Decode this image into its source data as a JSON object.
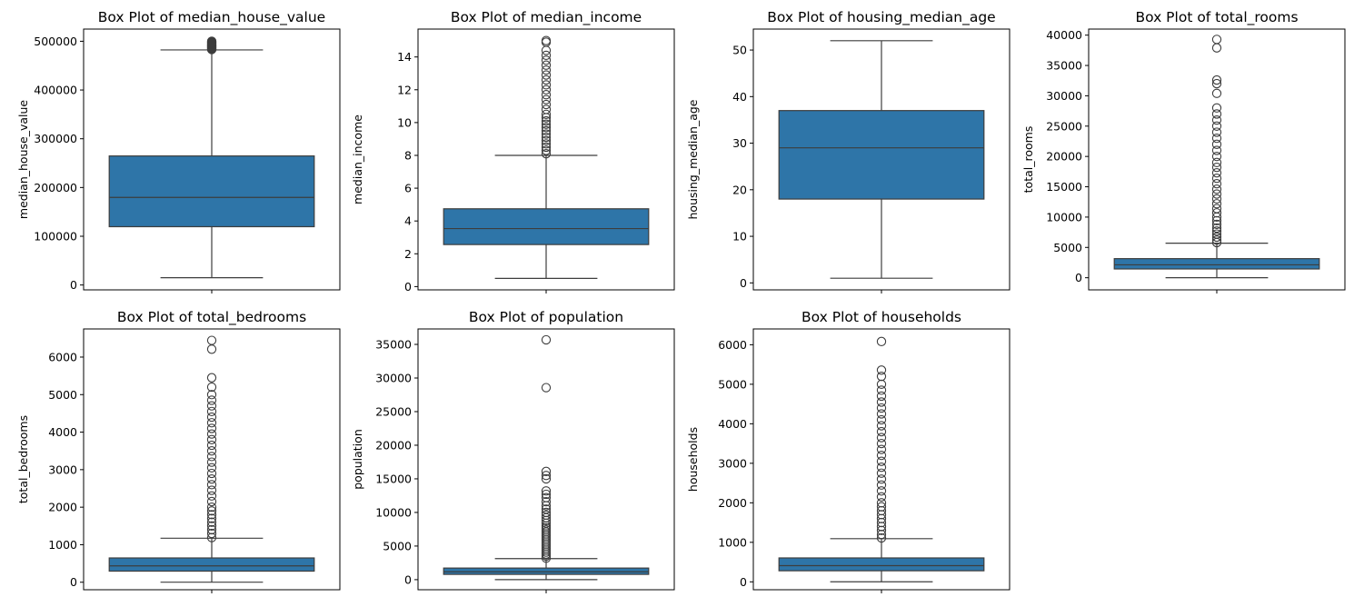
{
  "figure": {
    "background": "#ffffff"
  },
  "style": {
    "box_fill": "#2e75a8",
    "line_color": "#3d3d3d",
    "flier_edge": "#3d3d3d",
    "flier_fill": "none"
  },
  "chart_data": [
    {
      "type": "box",
      "title": "Box Plot of median_house_value",
      "ylabel": "median_house_value",
      "ylim": [
        -10000,
        525000
      ],
      "yticks": [
        0,
        100000,
        200000,
        300000,
        400000,
        500000
      ],
      "yticklabels": [
        "0",
        "100000",
        "200000",
        "300000",
        "400000",
        "500000"
      ],
      "whisker_low": 14999,
      "q1": 119600,
      "median": 179700,
      "q3": 264700,
      "whisker_high": 482200,
      "outliers": [
        483000,
        484000,
        485000,
        486000,
        487000,
        488000,
        489000,
        490000,
        491000,
        492000,
        493000,
        494000,
        495000,
        496000,
        497000,
        498000,
        499000,
        500001
      ]
    },
    {
      "type": "box",
      "title": "Box Plot of median_income",
      "ylabel": "median_income",
      "ylim": [
        -0.2,
        15.7
      ],
      "yticks": [
        0,
        2,
        4,
        6,
        8,
        10,
        12,
        14
      ],
      "yticklabels": [
        "0",
        "2",
        "4",
        "6",
        "8",
        "10",
        "12",
        "14"
      ],
      "whisker_low": 0.4999,
      "q1": 2.5634,
      "median": 3.5348,
      "q3": 4.7432,
      "whisker_high": 8.0,
      "outliers": [
        8.1,
        8.3,
        8.5,
        8.7,
        8.9,
        9.1,
        9.3,
        9.5,
        9.7,
        9.9,
        10.1,
        10.3,
        10.5,
        10.8,
        11.1,
        11.4,
        11.7,
        12.0,
        12.3,
        12.6,
        12.9,
        13.2,
        13.5,
        13.8,
        14.1,
        14.4,
        14.9,
        15.0
      ]
    },
    {
      "type": "box",
      "title": "Box Plot of housing_median_age",
      "ylabel": "housing_median_age",
      "ylim": [
        -1.5,
        54.5
      ],
      "yticks": [
        0,
        10,
        20,
        30,
        40,
        50
      ],
      "yticklabels": [
        "0",
        "10",
        "20",
        "30",
        "40",
        "50"
      ],
      "whisker_low": 1,
      "q1": 18,
      "median": 29,
      "q3": 37,
      "whisker_high": 52,
      "outliers": []
    },
    {
      "type": "box",
      "title": "Box Plot of total_rooms",
      "ylabel": "total_rooms",
      "ylim": [
        -2000,
        41000
      ],
      "yticks": [
        0,
        5000,
        10000,
        15000,
        20000,
        25000,
        30000,
        35000,
        40000
      ],
      "yticklabels": [
        "0",
        "5000",
        "10000",
        "15000",
        "20000",
        "25000",
        "30000",
        "35000",
        "40000"
      ],
      "whisker_low": 2,
      "q1": 1447,
      "median": 2127,
      "q3": 3148,
      "whisker_high": 5698,
      "outliers": [
        5800,
        6200,
        6700,
        7200,
        7700,
        8200,
        8800,
        9400,
        10000,
        10700,
        11400,
        12200,
        13000,
        13800,
        14600,
        15500,
        16400,
        17300,
        18200,
        19000,
        20000,
        21000,
        22000,
        23000,
        24000,
        25000,
        26000,
        27000,
        28000,
        30400,
        32000,
        32600,
        37900,
        39300
      ]
    },
    {
      "type": "box",
      "title": "Box Plot of total_bedrooms",
      "ylabel": "total_bedrooms",
      "ylim": [
        -200,
        6750
      ],
      "yticks": [
        0,
        1000,
        2000,
        3000,
        4000,
        5000,
        6000
      ],
      "yticklabels": [
        "0",
        "1000",
        "2000",
        "3000",
        "4000",
        "5000",
        "6000"
      ],
      "whisker_low": 1,
      "q1": 296,
      "median": 435,
      "q3": 647,
      "whisker_high": 1173,
      "outliers": [
        1190,
        1300,
        1400,
        1500,
        1600,
        1700,
        1800,
        1900,
        2000,
        2150,
        2300,
        2450,
        2600,
        2750,
        2900,
        3050,
        3200,
        3350,
        3500,
        3650,
        3800,
        3950,
        4100,
        4250,
        4400,
        4550,
        4700,
        4850,
        5000,
        5200,
        5450,
        6210,
        6445
      ]
    },
    {
      "type": "box",
      "title": "Box Plot of population",
      "ylabel": "population",
      "ylim": [
        -1500,
        37300
      ],
      "yticks": [
        0,
        5000,
        10000,
        15000,
        20000,
        25000,
        30000,
        35000
      ],
      "yticklabels": [
        "0",
        "5000",
        "10000",
        "15000",
        "20000",
        "25000",
        "30000",
        "35000"
      ],
      "whisker_low": 3,
      "q1": 787,
      "median": 1166,
      "q3": 1725,
      "whisker_high": 3132,
      "outliers": [
        3200,
        3500,
        3800,
        4100,
        4400,
        4700,
        5000,
        5300,
        5600,
        5900,
        6200,
        6500,
        6800,
        7100,
        7400,
        7700,
        8000,
        8400,
        8800,
        9200,
        9600,
        10000,
        10500,
        11000,
        11600,
        12200,
        12700,
        13200,
        15000,
        15500,
        16100,
        28566,
        35682
      ]
    },
    {
      "type": "box",
      "title": "Box Plot of households",
      "ylabel": "households",
      "ylim": [
        -200,
        6400
      ],
      "yticks": [
        0,
        1000,
        2000,
        3000,
        4000,
        5000,
        6000
      ],
      "yticklabels": [
        "0",
        "1000",
        "2000",
        "3000",
        "4000",
        "5000",
        "6000"
      ],
      "whisker_low": 1,
      "q1": 280,
      "median": 409,
      "q3": 605,
      "whisker_high": 1092,
      "outliers": [
        1110,
        1200,
        1300,
        1400,
        1500,
        1600,
        1700,
        1800,
        1900,
        2000,
        2150,
        2300,
        2450,
        2600,
        2750,
        2900,
        3050,
        3200,
        3350,
        3500,
        3650,
        3800,
        3950,
        4100,
        4250,
        4400,
        4550,
        4700,
        4850,
        5000,
        5200,
        5358,
        6082
      ]
    }
  ]
}
